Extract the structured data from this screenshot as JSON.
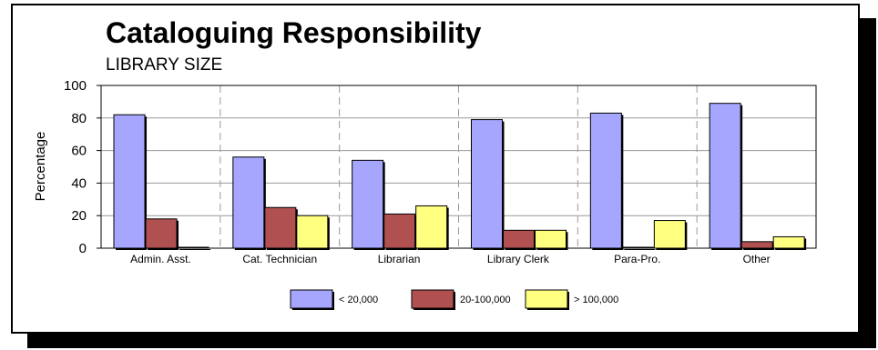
{
  "chart_data": {
    "type": "bar",
    "title": "Cataloguing Responsibility",
    "subtitle": "LIBRARY SIZE",
    "xlabel": "",
    "ylabel": "Percentage",
    "ylim": [
      0,
      100
    ],
    "yticks": [
      0,
      20,
      40,
      60,
      80,
      100
    ],
    "categories": [
      "Admin. Asst.",
      "Cat. Technician",
      "Librarian",
      "Library Clerk",
      "Para-Pro.",
      "Other"
    ],
    "series": [
      {
        "name": "< 20,000",
        "color": "#a6a6ff",
        "values": [
          82,
          56,
          54,
          79,
          83,
          89
        ]
      },
      {
        "name": "20-100,000",
        "color": "#b05050",
        "values": [
          18,
          25,
          21,
          11,
          0,
          4
        ]
      },
      {
        "name": "> 100,000",
        "color": "#ffff80",
        "values": [
          0,
          20,
          26,
          11,
          17,
          7
        ]
      }
    ],
    "grid": true,
    "legend_position": "bottom"
  }
}
